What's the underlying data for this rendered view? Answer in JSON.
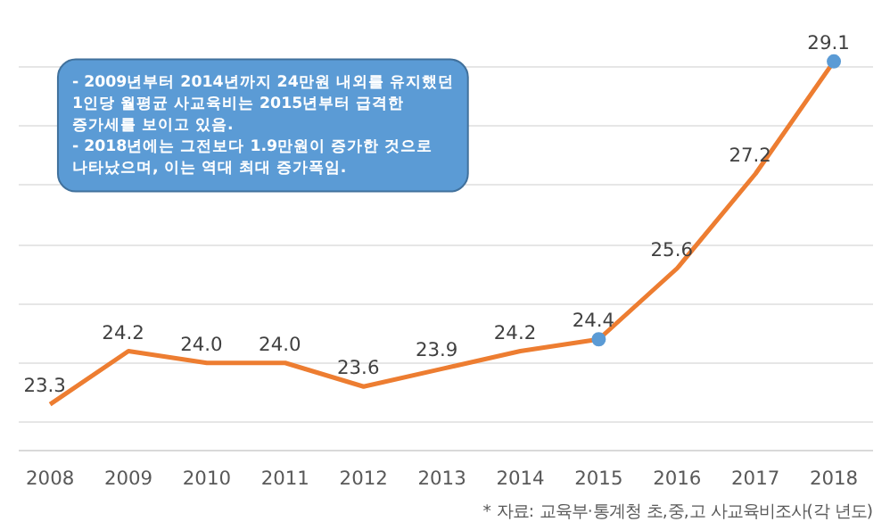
{
  "chart_data": {
    "type": "line",
    "x": [
      2008,
      2009,
      2010,
      2011,
      2012,
      2013,
      2014,
      2015,
      2016,
      2017,
      2018
    ],
    "series": [
      {
        "type": "line",
        "color": "#ed7d31",
        "values": [
          23.3,
          24.2,
          24.0,
          24.0,
          23.6,
          23.9,
          24.2,
          24.4,
          25.6,
          27.2,
          29.1
        ],
        "marker": "none",
        "value_labels": [
          "23.3",
          "24.2",
          "24.0",
          "24.0",
          "23.6",
          "23.9",
          "24.2",
          "24.4",
          "25.6",
          "27.2",
          "29.1"
        ]
      },
      {
        "type": "scatter",
        "color": "#5b9bd5",
        "x": [
          2015,
          2018
        ],
        "values": [
          24.4,
          29.1
        ],
        "marker": "circle"
      }
    ],
    "xlim": [
      2007.6,
      2018.5
    ],
    "xticks": [
      2008,
      2009,
      2010,
      2011,
      2012,
      2013,
      2014,
      2015,
      2016,
      2017,
      2018
    ],
    "grid": "y",
    "tick_labels": "x",
    "annotations": [
      "- 2009년부터 2014년까지 24만원 내외를 유지했던\n  1인당 월평균 사교육비는 2015년부터 급격한\n  증가세를 보이고 있음.\n- 2018년에는 그전보다 1.9만원이 증가한 것으로\n  나타났으며, 이는 역대 최대 증가폭임.",
      "* 자료: 교육부·통계청 초,중,고 사교육비조사(각 년도)"
    ]
  }
}
